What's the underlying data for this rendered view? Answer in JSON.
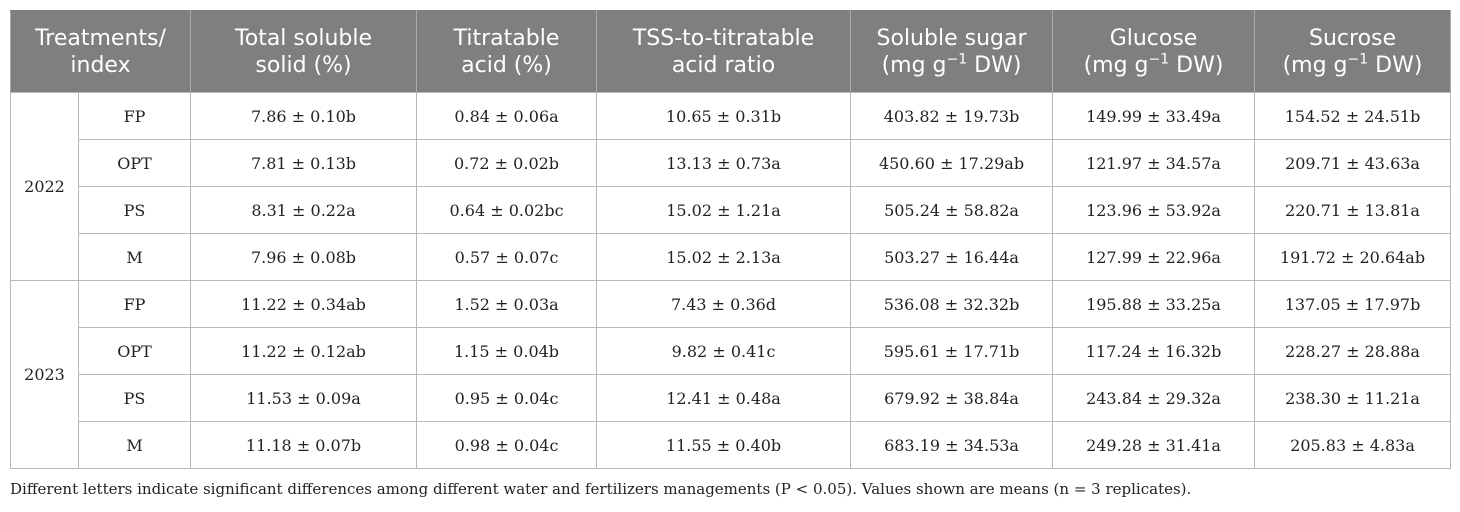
{
  "header": {
    "treatments": [
      "Treatments/",
      "index"
    ],
    "tss": [
      "Total soluble",
      "solid (%)"
    ],
    "ta": [
      "Titratable",
      "acid (%)"
    ],
    "ratio": [
      "TSS-to-titratable",
      "acid ratio"
    ],
    "soluble_sugar": {
      "line1": "Soluble sugar",
      "pre": "(mg g",
      "sup": "−1",
      "post": " DW)"
    },
    "glucose": {
      "line1": "Glucose",
      "pre": "(mg g",
      "sup": "−1",
      "post": " DW)"
    },
    "sucrose": {
      "line1": "Sucrose",
      "pre": "(mg g",
      "sup": "−1",
      "post": " DW)"
    }
  },
  "groups": [
    {
      "year": "2022",
      "rows": [
        {
          "treatment": "FP",
          "tss": "7.86 ± 0.10b",
          "ta": "0.84 ± 0.06a",
          "ratio": "10.65 ± 0.31b",
          "soluble_sugar": "403.82 ± 19.73b",
          "glucose": "149.99 ± 33.49a",
          "sucrose": "154.52 ± 24.51b"
        },
        {
          "treatment": "OPT",
          "tss": "7.81 ± 0.13b",
          "ta": "0.72 ± 0.02b",
          "ratio": "13.13 ± 0.73a",
          "soluble_sugar": "450.60 ± 17.29ab",
          "glucose": "121.97 ± 34.57a",
          "sucrose": "209.71 ± 43.63a"
        },
        {
          "treatment": "PS",
          "tss": "8.31 ± 0.22a",
          "ta": "0.64 ± 0.02bc",
          "ratio": "15.02 ± 1.21a",
          "soluble_sugar": "505.24 ± 58.82a",
          "glucose": "123.96 ± 53.92a",
          "sucrose": "220.71 ± 13.81a"
        },
        {
          "treatment": "M",
          "tss": "7.96 ± 0.08b",
          "ta": "0.57 ± 0.07c",
          "ratio": "15.02 ± 2.13a",
          "soluble_sugar": "503.27 ± 16.44a",
          "glucose": "127.99 ± 22.96a",
          "sucrose": "191.72 ± 20.64ab"
        }
      ]
    },
    {
      "year": "2023",
      "rows": [
        {
          "treatment": "FP",
          "tss": "11.22 ± 0.34ab",
          "ta": "1.52 ± 0.03a",
          "ratio": "7.43 ± 0.36d",
          "soluble_sugar": "536.08 ± 32.32b",
          "glucose": "195.88 ± 33.25a",
          "sucrose": "137.05 ± 17.97b"
        },
        {
          "treatment": "OPT",
          "tss": "11.22 ± 0.12ab",
          "ta": "1.15 ± 0.04b",
          "ratio": "9.82 ± 0.41c",
          "soluble_sugar": "595.61 ± 17.71b",
          "glucose": "117.24 ± 16.32b",
          "sucrose": "228.27 ± 28.88a"
        },
        {
          "treatment": "PS",
          "tss": "11.53 ± 0.09a",
          "ta": "0.95 ± 0.04c",
          "ratio": "12.41 ± 0.48a",
          "soluble_sugar": "679.92 ± 38.84a",
          "glucose": "243.84 ± 29.32a",
          "sucrose": "238.30 ± 11.21a"
        },
        {
          "treatment": "M",
          "tss": "11.18 ± 0.07b",
          "ta": "0.98 ± 0.04c",
          "ratio": "11.55 ± 0.40b",
          "soluble_sugar": "683.19 ± 34.53a",
          "glucose": "249.28 ± 31.41a",
          "sucrose": "205.83 ± 4.83a"
        }
      ]
    }
  ],
  "footnote": "Different letters indicate significant differences among different water and fertilizers managements (P < 0.05). Values shown are means (n = 3 replicates)."
}
